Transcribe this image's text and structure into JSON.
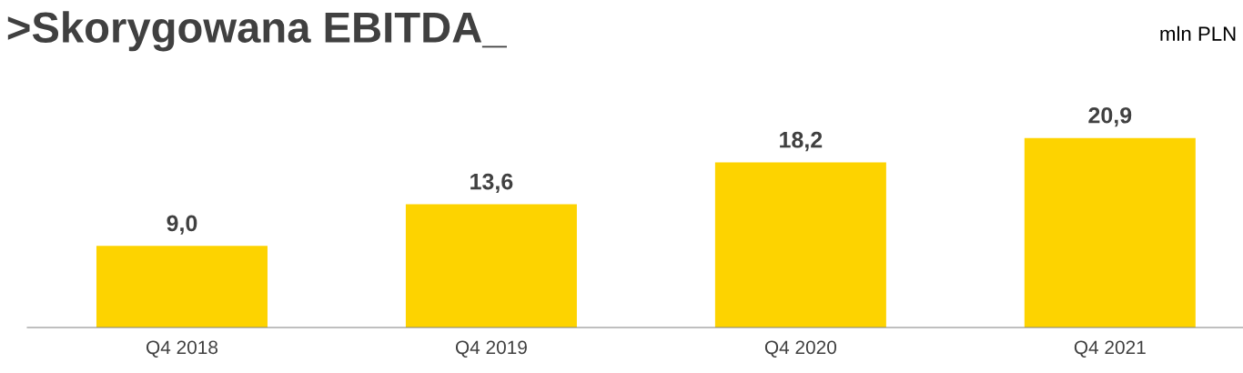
{
  "chart_data": {
    "type": "bar",
    "title": ">Skorygowana EBITDA_",
    "ylabel": "mln PLN",
    "categories": [
      "Q4 2018",
      "Q4 2019",
      "Q4 2020",
      "Q4 2021"
    ],
    "values": [
      9.0,
      13.6,
      18.2,
      20.9
    ],
    "value_labels": [
      "9,0",
      "13,6",
      "18,2",
      "20,9"
    ],
    "color": "#fdd300",
    "tick_labels": "x",
    "grid": false,
    "legend": false
  }
}
